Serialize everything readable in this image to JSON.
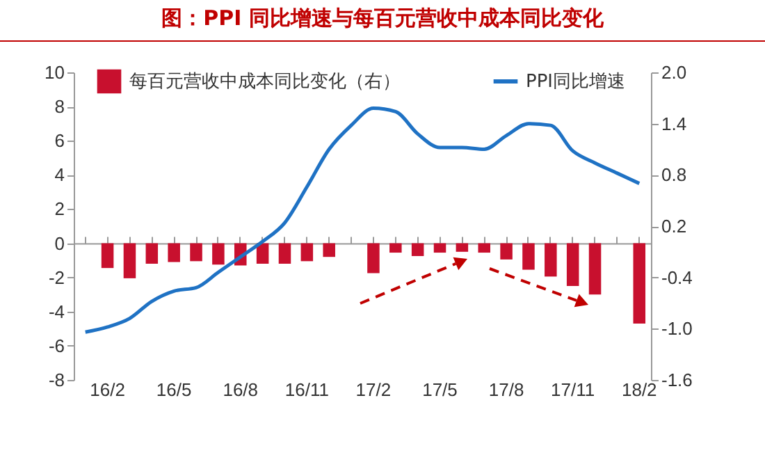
{
  "chart_data": {
    "type": "bar",
    "title": "图：PPI 同比增速与每百元营收中成本同比变化",
    "categories": [
      null,
      "16/2",
      null,
      null,
      "16/5",
      null,
      null,
      "16/8",
      null,
      null,
      "16/11",
      null,
      null,
      "17/2",
      null,
      null,
      "17/5",
      null,
      null,
      "17/8",
      null,
      null,
      "17/11",
      null,
      null,
      "18/2"
    ],
    "series": [
      {
        "name": "每百元营收中成本同比变化（右）",
        "axis": "y2",
        "color": "#c8102e",
        "values": [
          null,
          -0.29,
          -0.41,
          -0.24,
          -0.22,
          -0.21,
          -0.25,
          -0.26,
          -0.24,
          -0.24,
          -0.21,
          -0.16,
          null,
          -0.35,
          -0.11,
          -0.15,
          -0.11,
          -0.1,
          -0.11,
          -0.19,
          -0.31,
          -0.39,
          -0.5,
          -0.6,
          null,
          -0.94
        ]
      },
      {
        "name": "PPI同比增速",
        "type": "line",
        "color": "#1f72c4",
        "values": [
          -5.2,
          -4.9,
          -4.4,
          -3.4,
          -2.8,
          -2.6,
          -1.7,
          -0.8,
          0.1,
          1.2,
          3.3,
          5.5,
          6.9,
          7.9,
          7.7,
          6.4,
          5.6,
          5.6,
          5.5,
          6.3,
          7.0,
          6.9,
          5.4,
          4.7,
          4.1,
          3.5
        ]
      }
    ],
    "ylim": [
      -8,
      10
    ],
    "yticks": [
      -8,
      -6,
      -4,
      -2,
      0,
      2,
      4,
      6,
      8,
      10
    ],
    "y2lim": [
      -1.6,
      2.0
    ],
    "y2ticks": [
      {
        "value": -1.6,
        "label": "-1.6"
      },
      {
        "value": -1,
        "label": "-1.0"
      },
      {
        "value": -0.4,
        "label": "-0.4"
      },
      {
        "value": 0.2,
        "label": "0.2"
      },
      {
        "value": 0.8,
        "label": "0.8"
      },
      {
        "value": 1.4,
        "label": "1.4"
      },
      {
        "value": 2,
        "label": "2.0"
      }
    ],
    "legend": "top"
  }
}
